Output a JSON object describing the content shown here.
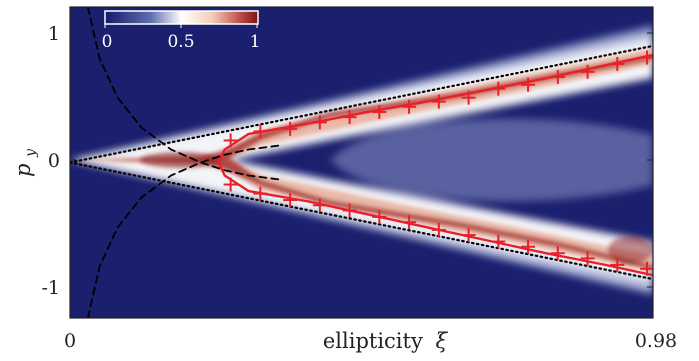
{
  "chart_data": {
    "type": "heatmap",
    "colormap": [
      "#16196b",
      "#2a3a8c",
      "#8f9cc8",
      "#ffffff",
      "#f4d3c1",
      "#c25a4a",
      "#7a1515"
    ],
    "xlabel_text": "ellipticity",
    "xlabel_symbol": "ξ",
    "ylabel_symbol": "p",
    "ylabel_subscript": "y",
    "x_ticks": [
      "0",
      "0.98"
    ],
    "y_ticks": [
      "1",
      "0",
      "-1"
    ],
    "xlim": [
      0,
      0.98
    ],
    "ylim": [
      -1.2,
      1.2
    ],
    "colorbar": {
      "ticks": [
        "0",
        "0.5",
        "1"
      ],
      "range": [
        0,
        1
      ],
      "location": "top-left"
    },
    "series": [
      {
        "style": "red-solid-with-plus-markers",
        "color": "#e8202a",
        "upper_branch": [
          [
            0.25,
            0.0
          ],
          [
            0.26,
            0.1
          ],
          [
            0.3,
            0.22
          ],
          [
            0.4,
            0.3
          ],
          [
            0.5,
            0.39
          ],
          [
            0.6,
            0.47
          ],
          [
            0.7,
            0.56
          ],
          [
            0.8,
            0.65
          ],
          [
            0.9,
            0.75
          ],
          [
            0.98,
            0.83
          ]
        ],
        "lower_branch": [
          [
            0.25,
            0.0
          ],
          [
            0.26,
            -0.1
          ],
          [
            0.3,
            -0.22
          ],
          [
            0.4,
            -0.3
          ],
          [
            0.5,
            -0.4
          ],
          [
            0.6,
            -0.5
          ],
          [
            0.7,
            -0.6
          ],
          [
            0.8,
            -0.7
          ],
          [
            0.9,
            -0.79
          ],
          [
            0.98,
            -0.87
          ]
        ],
        "markers_upper": [
          [
            0.27,
            0.17
          ],
          [
            0.32,
            0.24
          ],
          [
            0.37,
            0.26
          ],
          [
            0.42,
            0.31
          ],
          [
            0.47,
            0.35
          ],
          [
            0.52,
            0.39
          ],
          [
            0.57,
            0.43
          ],
          [
            0.62,
            0.47
          ],
          [
            0.67,
            0.5
          ],
          [
            0.72,
            0.57
          ],
          [
            0.77,
            0.6
          ],
          [
            0.82,
            0.66
          ],
          [
            0.87,
            0.7
          ],
          [
            0.92,
            0.76
          ],
          [
            0.97,
            0.81
          ]
        ],
        "markers_lower": [
          [
            0.27,
            -0.17
          ],
          [
            0.32,
            -0.24
          ],
          [
            0.37,
            -0.29
          ],
          [
            0.42,
            -0.33
          ],
          [
            0.47,
            -0.37
          ],
          [
            0.52,
            -0.42
          ],
          [
            0.57,
            -0.46
          ],
          [
            0.62,
            -0.52
          ],
          [
            0.67,
            -0.56
          ],
          [
            0.72,
            -0.61
          ],
          [
            0.77,
            -0.65
          ],
          [
            0.82,
            -0.7
          ],
          [
            0.87,
            -0.74
          ],
          [
            0.92,
            -0.79
          ],
          [
            0.97,
            -0.82
          ]
        ]
      },
      {
        "style": "black-dotted",
        "color": "#000000",
        "upper": [
          [
            0,
            0
          ],
          [
            0.98,
            0.9
          ]
        ],
        "lower": [
          [
            0,
            0
          ],
          [
            0.98,
            -0.9
          ]
        ]
      },
      {
        "style": "black-dashed",
        "color": "#000000",
        "curve_a": [
          [
            0.03,
            1.2
          ],
          [
            0.05,
            0.8
          ],
          [
            0.08,
            0.5
          ],
          [
            0.12,
            0.27
          ],
          [
            0.17,
            0.1
          ],
          [
            0.22,
            0.0
          ],
          [
            0.26,
            -0.06
          ],
          [
            0.3,
            -0.1
          ],
          [
            0.35,
            -0.13
          ]
        ],
        "curve_b": [
          [
            0.03,
            -1.2
          ],
          [
            0.05,
            -0.8
          ],
          [
            0.08,
            -0.5
          ],
          [
            0.12,
            -0.27
          ],
          [
            0.17,
            -0.1
          ],
          [
            0.22,
            0.0
          ],
          [
            0.26,
            0.06
          ],
          [
            0.3,
            0.1
          ],
          [
            0.35,
            0.13
          ]
        ]
      }
    ]
  }
}
